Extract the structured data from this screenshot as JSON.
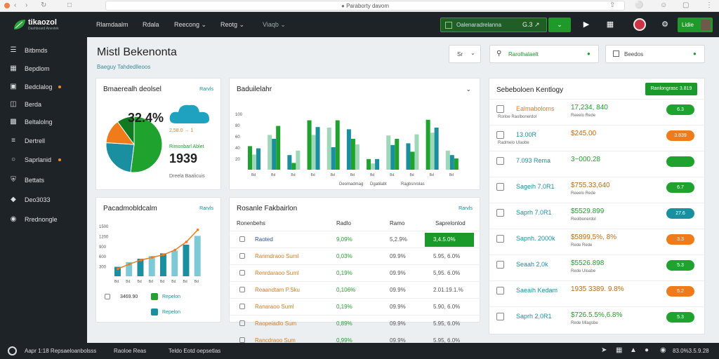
{
  "browser": {
    "url": "Paraborty davom",
    "nav_icons": [
      "back-icon",
      "forward-icon",
      "refresh-icon",
      "home-icon"
    ]
  },
  "topnav": {
    "logo": "tikaozol",
    "logo_sub": "Dashboard Anevtek",
    "menu": [
      "Rlamdaalm",
      "Rdala",
      "Reecong",
      "Reotg",
      "Viaqb"
    ],
    "promo_label": "Oalenaradrelanna",
    "promo_value": "G.3  ↗",
    "user_label": "Lidie"
  },
  "sidebar": {
    "items": [
      {
        "label": "Bitbmds",
        "icon": "list-icon"
      },
      {
        "label": "Bepdlom",
        "icon": "grid-icon"
      },
      {
        "label": "Bedclalog",
        "icon": "layers-icon",
        "badge": true
      },
      {
        "label": "Berda",
        "icon": "book-icon"
      },
      {
        "label": "Beltalolng",
        "icon": "folder-icon"
      },
      {
        "label": "Dertrell",
        "icon": "menu-icon"
      },
      {
        "label": "Saprlanid",
        "icon": "circle-icon",
        "badge": true
      },
      {
        "label": "Bettats",
        "icon": "shield-icon"
      },
      {
        "label": "Deo3033",
        "icon": "bell-icon"
      },
      {
        "label": "Rrednongle",
        "icon": "lock-icon"
      }
    ]
  },
  "header": {
    "title": "Mistl Bekenonta",
    "breadcrumb": "Baeguy  Tahdedlleoos",
    "filter1": "Sr",
    "filter2": "Rarolhalaelt",
    "filter3": "Beedos"
  },
  "card_pie": {
    "title": "Bmaerealh deolsel",
    "link": "Rarvls",
    "percent": "32.4%",
    "legend_a": "2,58.0  →  1",
    "legend_b": "Rimonbarl Ablet",
    "big_value": "1939",
    "caption": "Dreela  Baalicuis"
  },
  "card_bars": {
    "title": "Baduilelahr",
    "menu": "⌄",
    "legend": [
      "Deomadmag",
      "Dgatilabt",
      "Ragbsnrolas"
    ]
  },
  "card_line": {
    "title": "Pacadmobldcalm",
    "link": "Rarvls",
    "rows": [
      {
        "value": "3469.90",
        "icon": "download-icon",
        "label": "Repelon"
      },
      {
        "value": "3469.90",
        "icon": "leaf-icon",
        "label": "Repelon"
      },
      {
        "value": "",
        "icon": "bolt-icon",
        "label": "Repelon"
      }
    ]
  },
  "table": {
    "title": "Rosanle Fakbairlon",
    "link": "Rarvls",
    "headers": [
      "Ronenbehs",
      "Radlo",
      "Ramo",
      "Saprelonlod"
    ],
    "rows": [
      {
        "name": "Raoted",
        "c1": "9,09%",
        "c2": "5,2.9%",
        "c3": "3,4.5.0%",
        "icon": "rocket-icon",
        "highlight": true
      },
      {
        "name": "Ranmdraoo  Suml",
        "c1": "0,03%",
        "c2": "09.9%",
        "c3": "5.95,  6.0%"
      },
      {
        "name": "Renrdaraoo  Suml",
        "c1": "0,19%",
        "c2": "09.9%",
        "c3": "5,95.  6.0%"
      },
      {
        "name": "Reaandtam  P.Sku",
        "c1": "0,106%",
        "c2": "09.9%",
        "c3": "2.01.19.1.%"
      },
      {
        "name": "Ranaraoo  Suml",
        "c1": "0,19%",
        "c2": "09.9%",
        "c3": "5.90,  6.0%"
      },
      {
        "name": "Raopeiadlo  Sum",
        "c1": "0,89%",
        "c2": "09.9%",
        "c3": "5.95,  6.0%"
      },
      {
        "name": "Rancdraoo  Sum",
        "c1": "0,99%",
        "c2": "09.9%",
        "c3": "5.95,  6.0%"
      }
    ]
  },
  "right_panel": {
    "title": "Sebeboloen Kentlogy",
    "button": "Ranlongrasc  3.819",
    "rows": [
      {
        "label": "Ealmaboloms",
        "sub": "Rorloe Raolbonerdol",
        "value": "17,234, 840",
        "vsub": "Reeelo  Rede",
        "pill": "6.3",
        "pill_color": "#1fa22e"
      },
      {
        "label": "13.00R",
        "sub": "Radmelo  Ulaobe",
        "value": "$245.00",
        "vsub": "",
        "pill": "3.839",
        "pill_color": "#f07b1b"
      },
      {
        "label": "7.093 Rema",
        "sub": "",
        "value": "3−000.28",
        "vsub": "",
        "pill": "",
        "pill_color": "#1fa22e"
      },
      {
        "label": "Sageih 7,0R1",
        "sub": "",
        "value": "$755.33,640",
        "vsub": "Reeelo  Rede",
        "pill": "6.7",
        "pill_color": "#1fa22e"
      },
      {
        "label": "Saprh 7.0R1",
        "sub": "",
        "value": "$5529.899",
        "vsub": "Reolbonerdol",
        "pill": "27.6",
        "pill_color": "#1a8fa0"
      },
      {
        "label": "Sapnh. 2000k",
        "sub": "",
        "value": "$5899,5%, 8%",
        "vsub": "Rede  Rede",
        "pill": "3.3",
        "pill_color": "#f07b1b"
      },
      {
        "label": "Seaah 2,0k",
        "sub": "",
        "value": "$5526.898",
        "vsub": "Rede  Uloabe",
        "pill": "5.3",
        "pill_color": "#1fa22e"
      },
      {
        "label": "Saeaih Kedam",
        "sub": "",
        "value": "1935 3389. 9.8%",
        "vsub": "",
        "pill": "5.2",
        "pill_color": "#f07b1b"
      },
      {
        "label": "Saprh 2,0R1",
        "sub": "",
        "value": "$726.5.5%,6.8%",
        "vsub": "Rede  Mlagsbe",
        "pill": "5.3",
        "pill_color": "#1fa22e"
      }
    ]
  },
  "status": {
    "left": "Aapr 1:18  Repsaeloanbolsss",
    "mid": "Raoloe  Reas",
    "mid2": "Teldo  Eotd  oepsetlas",
    "right": "83.0%3.5.9.28"
  },
  "colors": {
    "green": "#1fa22e",
    "teal": "#1a8fa0",
    "orange": "#f07b1b",
    "dark": "#1e2327"
  },
  "chart_data": [
    {
      "type": "pie",
      "categories": [
        "A",
        "B",
        "C",
        "D"
      ],
      "values": [
        52,
        24,
        14,
        10
      ]
    },
    {
      "type": "bar",
      "categories": [
        "Bd",
        "Bd",
        "Bd",
        "Bd",
        "Bd",
        "Bd",
        "Bd",
        "Bd",
        "Bd",
        "Bd",
        "Bd"
      ],
      "ylim": [
        0,
        100
      ],
      "yticks": [
        "20",
        "40",
        "60",
        "80",
        "100"
      ],
      "series": [
        {
          "name": "Deomadmag",
          "values": [
            42,
            62,
            26,
            88,
            75,
            72,
            19,
            61,
            47,
            89,
            34
          ]
        },
        {
          "name": "Dgatilabt",
          "values": [
            27,
            55,
            12,
            62,
            40,
            55,
            11,
            44,
            32,
            66,
            26
          ]
        },
        {
          "name": "Ragbsnrolas",
          "values": [
            38,
            78,
            34,
            76,
            88,
            45,
            19,
            55,
            63,
            75,
            20
          ]
        }
      ]
    },
    {
      "type": "bar",
      "categories": [
        "Bd",
        "Bd",
        "Bd",
        "Bd",
        "Bd",
        "Bd",
        "Bd",
        "Bd"
      ],
      "ylim": [
        0,
        1500
      ],
      "yticks": [
        "300",
        "600",
        "900",
        "1200",
        "1500"
      ],
      "series": [
        {
          "name": "bars",
          "values": [
            280,
            420,
            520,
            600,
            680,
            760,
            940,
            1200
          ]
        },
        {
          "name": "trend",
          "values": [
            220,
            360,
            480,
            560,
            640,
            780,
            1020,
            1380
          ]
        }
      ]
    }
  ]
}
